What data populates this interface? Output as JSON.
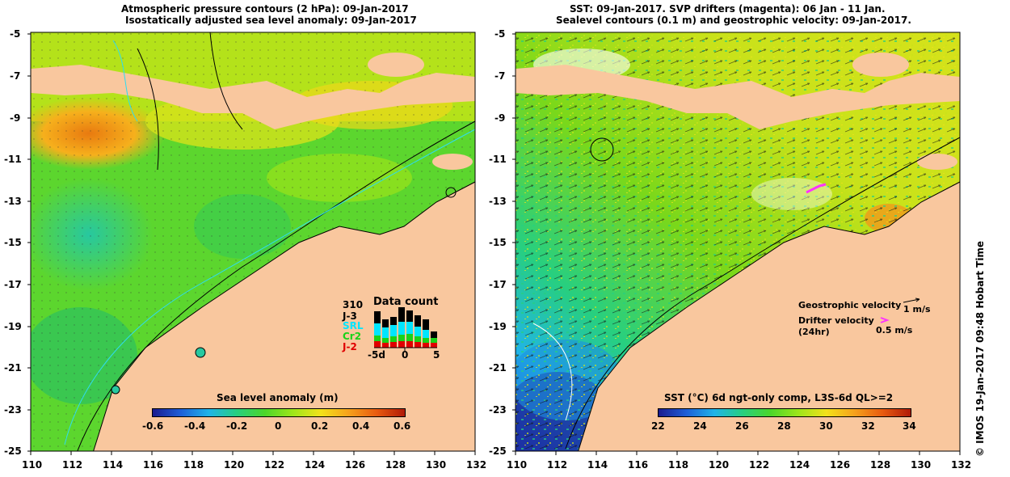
{
  "left_panel": {
    "title_line1": "Atmospheric pressure contours (2 hPa): 09-Jan-2017",
    "title_line2": "Isostatically adjusted sea level anomaly: 09-Jan-2017",
    "y_ticks": [
      "-5",
      "-7",
      "-9",
      "-11",
      "-13",
      "-15",
      "-17",
      "-19",
      "-21",
      "-23",
      "-25"
    ],
    "x_ticks": [
      "110",
      "112",
      "114",
      "116",
      "118",
      "120",
      "122",
      "124",
      "126",
      "128",
      "130",
      "132"
    ],
    "colorbar": {
      "title": "Sea level anomaly (m)",
      "ticks": [
        "-0.6",
        "-0.4",
        "-0.2",
        "0",
        "0.2",
        "0.4",
        "0.6"
      ]
    },
    "data_count": {
      "title": "Data count",
      "series_labels": [
        {
          "label": "310",
          "color": "#000000"
        },
        {
          "label": "J-3",
          "color": "#000000"
        },
        {
          "label": "SRL",
          "color": "#00e5ff"
        },
        {
          "label": "Cr2",
          "color": "#19d219"
        },
        {
          "label": "J-2",
          "color": "#e00000"
        }
      ],
      "x_ticks": [
        "-5d",
        "0",
        "5"
      ]
    }
  },
  "right_panel": {
    "title_line1": "SST: 09-Jan-2017. SVP drifters (magenta): 06 Jan - 11 Jan.",
    "title_line2": "Sealevel contours (0.1 m) and geostrophic velocity: 09-Jan-2017.",
    "y_ticks": [
      "-5",
      "-7",
      "-9",
      "-11",
      "-13",
      "-15",
      "-17",
      "-19",
      "-21",
      "-23",
      "-25"
    ],
    "x_ticks": [
      "110",
      "112",
      "114",
      "116",
      "118",
      "120",
      "122",
      "124",
      "126",
      "128",
      "130",
      "132"
    ],
    "colorbar": {
      "title": "SST (°C) 6d ngt-only comp, L3S-6d QL>=2",
      "ticks": [
        "22",
        "24",
        "26",
        "28",
        "30",
        "32",
        "34"
      ]
    },
    "velocity_legend": {
      "geostrophic_label": "Geostrophic velocity",
      "geostrophic_scale": "1 m/s",
      "drifter_label": "Drifter velocity",
      "drifter_sub": "(24hr)",
      "drifter_scale": "0.5 m/s"
    }
  },
  "side_stamp": "© IMOS 19-Jan-2017 09:48 Hobart Time",
  "colors": {
    "land": "#f9c79e",
    "sla_ramp": [
      "#1b1b8f",
      "#1e5fd8",
      "#20b4e8",
      "#27cf80",
      "#4cd62a",
      "#9ee61a",
      "#f3e11a",
      "#f6a11c",
      "#e85a10",
      "#b01a08"
    ],
    "sst_ramp": [
      "#1b1b8f",
      "#1e5fd8",
      "#20b4e8",
      "#27cf80",
      "#4cd62a",
      "#9ee61a",
      "#f3e11a",
      "#f6a11c",
      "#e85a10",
      "#b01a08"
    ],
    "drifter": "#ff33ff"
  }
}
